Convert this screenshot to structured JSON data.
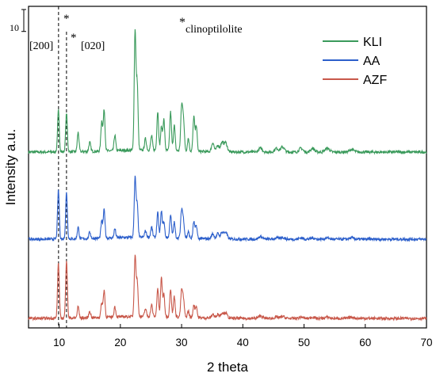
{
  "chart_data": {
    "type": "line",
    "xlabel": "2 theta",
    "ylabel": "Intensity a.u.",
    "xlim": [
      5,
      70
    ],
    "xticks": [
      10,
      20,
      30,
      40,
      50,
      60,
      70
    ],
    "scale_bar_label": "10",
    "reference_lines": [
      {
        "x": 9.9,
        "label": "[200]"
      },
      {
        "x": 11.2,
        "label": "[020]"
      }
    ],
    "annotation": {
      "marker": "*",
      "text": "clinoptilolite"
    },
    "peak_markers": [
      {
        "x": 11.2,
        "text": "*"
      },
      {
        "x": 11.2,
        "text": "*"
      }
    ],
    "series_peaks": {
      "positions": [
        9.88,
        11.2,
        13.1,
        15.0,
        16.95,
        17.35,
        19.1,
        22.4,
        22.75,
        24.1,
        25.1,
        26.1,
        26.7,
        27.1,
        28.2,
        28.8,
        30.0,
        30.3,
        31.1,
        32.0,
        32.4,
        35.1,
        35.9,
        36.6,
        37.2,
        42.9,
        45.5,
        46.5,
        49.5,
        51.4,
        53.8,
        57.8
      ],
      "widths": [
        0.14,
        0.14,
        0.14,
        0.15,
        0.14,
        0.14,
        0.14,
        0.14,
        0.14,
        0.15,
        0.15,
        0.14,
        0.14,
        0.14,
        0.14,
        0.14,
        0.15,
        0.15,
        0.14,
        0.14,
        0.14,
        0.2,
        0.2,
        0.25,
        0.25,
        0.3,
        0.3,
        0.3,
        0.3,
        0.3,
        0.35,
        0.35
      ]
    },
    "series": [
      {
        "name": "KLI",
        "color": "#3a9a5b",
        "baseline": 0.0,
        "heights": [
          3.2,
          3.0,
          1.5,
          0.7,
          2.3,
          3.2,
          1.2,
          9.2,
          5.1,
          0.9,
          1.1,
          3.0,
          1.8,
          2.4,
          3.0,
          2.0,
          3.3,
          2.4,
          1.0,
          2.7,
          2.0,
          0.7,
          0.5,
          0.7,
          0.7,
          0.3,
          0.3,
          0.4,
          0.3,
          0.3,
          0.3,
          0.2
        ]
      },
      {
        "name": "AA",
        "color": "#2c5fcb",
        "baseline": 0.0,
        "heights": [
          3.8,
          3.6,
          0.9,
          0.5,
          1.3,
          2.2,
          0.7,
          4.6,
          2.5,
          0.5,
          0.8,
          1.9,
          2.0,
          1.2,
          1.8,
          1.2,
          2.1,
          1.3,
          0.5,
          1.3,
          1.0,
          0.4,
          0.4,
          0.5,
          0.5,
          0.2,
          0.1,
          0.15,
          0.1,
          0.1,
          0.1,
          0.1
        ]
      },
      {
        "name": "AZF",
        "color": "#c8584a",
        "baseline": 0.0,
        "heights": [
          4.3,
          4.5,
          0.9,
          0.5,
          1.1,
          2.1,
          0.8,
          4.7,
          2.7,
          0.6,
          0.9,
          2.2,
          3.0,
          1.7,
          2.2,
          1.6,
          2.0,
          1.3,
          0.5,
          1.0,
          0.9,
          0.3,
          0.3,
          0.4,
          0.4,
          0.2,
          0.1,
          0.15,
          0.1,
          0.1,
          0.1,
          0.1
        ]
      }
    ],
    "grid": false,
    "legend_position": "top-right"
  }
}
